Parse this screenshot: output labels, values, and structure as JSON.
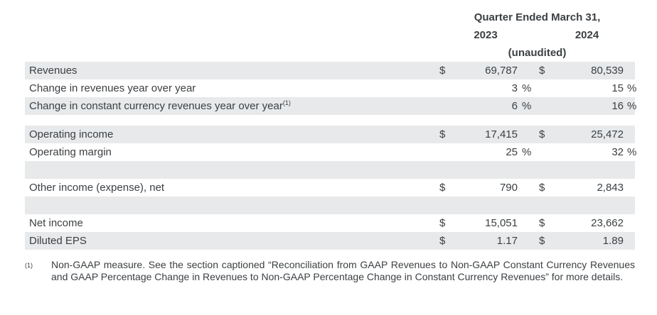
{
  "header": {
    "title": "Quarter Ended March 31,",
    "year_2023": "2023",
    "year_2024": "2024",
    "unaudited": "(unaudited)"
  },
  "table": {
    "rows": [
      {
        "label": "Revenues",
        "sym1": "$",
        "val1": "69,787",
        "unit1": "",
        "sym2": "$",
        "val2": "80,539",
        "unit2": "",
        "shaded": true
      },
      {
        "label": "Change in revenues year over year",
        "sym1": "",
        "val1": "3",
        "unit1": "%",
        "sym2": "",
        "val2": "15",
        "unit2": "%",
        "shaded": false
      },
      {
        "label": "Change in constant currency revenues year over year",
        "label_sup": "(1)",
        "sym1": "",
        "val1": "6",
        "unit1": "%",
        "sym2": "",
        "val2": "16",
        "unit2": "%",
        "shaded": true
      },
      {
        "type": "spacer-white"
      },
      {
        "label": "Operating income",
        "sym1": "$",
        "val1": "17,415",
        "unit1": "",
        "sym2": "$",
        "val2": "25,472",
        "unit2": "",
        "shaded": true
      },
      {
        "label": "Operating margin",
        "sym1": "",
        "val1": "25",
        "unit1": "%",
        "sym2": "",
        "val2": "32",
        "unit2": "%",
        "shaded": false
      },
      {
        "type": "spacer-shaded"
      },
      {
        "label": "Other income (expense), net",
        "sym1": "$",
        "val1": "790",
        "unit1": "",
        "sym2": "$",
        "val2": "2,843",
        "unit2": "",
        "shaded": false
      },
      {
        "type": "spacer-shaded"
      },
      {
        "label": "Net income",
        "sym1": "$",
        "val1": "15,051",
        "unit1": "",
        "sym2": "$",
        "val2": "23,662",
        "unit2": "",
        "shaded": false
      },
      {
        "label": "Diluted EPS",
        "sym1": "$",
        "val1": "1.17",
        "unit1": "",
        "sym2": "$",
        "val2": "1.89",
        "unit2": "",
        "shaded": true
      }
    ]
  },
  "footnote": {
    "marker": "(1)",
    "text": "Non-GAAP measure. See the section captioned “Reconciliation from GAAP Revenues to Non-GAAP Constant Currency Revenues and GAAP Percentage Change in Revenues to Non-GAAP Percentage Change in Constant Currency Revenues” for more details."
  }
}
